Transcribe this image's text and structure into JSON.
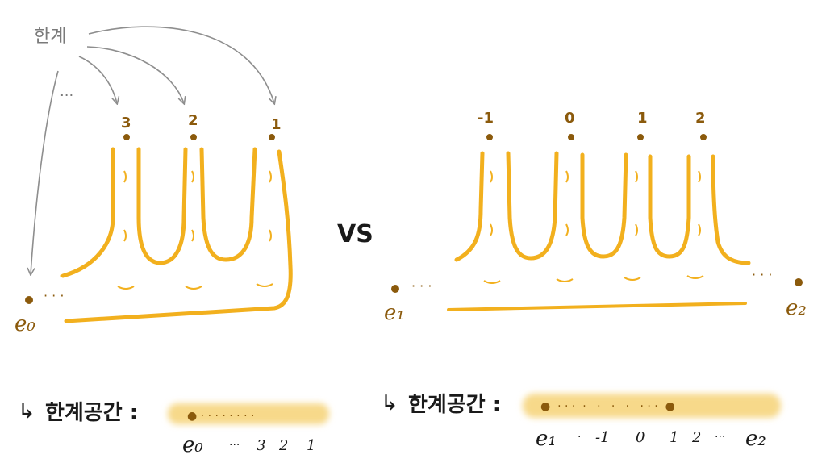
{
  "colors": {
    "tube": "#f2b01e",
    "dot": "#8b5a0c",
    "arrow": "#8e8e8e",
    "ink": "#1a1a1a",
    "annotation": "#7a7a7a",
    "band": "#f7d98a"
  },
  "left_figure": {
    "limit_label": "한계",
    "ellipsis": "···",
    "tick_labels": [
      "3",
      "2",
      "1"
    ],
    "base_point_label": "e₀",
    "trail_dots": "· · ·"
  },
  "vs_label": "VS",
  "right_figure": {
    "tick_labels": [
      "-1",
      "0",
      "1",
      "2"
    ],
    "left_point_label": "e₁",
    "right_point_label": "e₂",
    "left_trail": "· · ·",
    "right_trail": "· · ·"
  },
  "bottom_left": {
    "arrow_glyph": "↳",
    "caption": "한계공간 :",
    "band_dots": "● · · · · · · · ·",
    "axis_labels": [
      "e₀",
      "···",
      "3",
      "2",
      "1"
    ]
  },
  "bottom_right": {
    "arrow_glyph": "↳",
    "caption": "한계공간 :",
    "band_dots": "●  · · ·  ·   ·   ·   ·   · · ·  ●",
    "axis_labels": [
      "e₁",
      "·",
      "-1",
      "0",
      "1",
      "2",
      "···",
      "e₂"
    ]
  }
}
